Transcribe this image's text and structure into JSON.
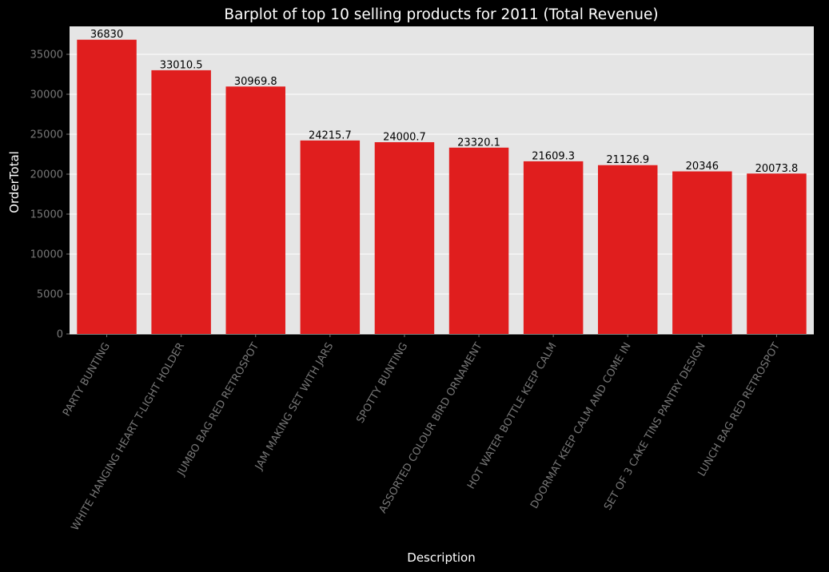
{
  "chart_data": {
    "type": "bar",
    "title": "Barplot of top 10 selling products for 2011 (Total Revenue)",
    "xlabel": "Description",
    "ylabel": "OrderTotal",
    "ylim": [
      0,
      38500
    ],
    "yticks": [
      0,
      5000,
      10000,
      15000,
      20000,
      25000,
      30000,
      35000
    ],
    "ytick_labels": [
      "0",
      "5000",
      "10000",
      "15000",
      "20000",
      "25000",
      "30000",
      "35000"
    ],
    "grid": true,
    "categories": [
      "PARTY BUNTING",
      "WHITE HANGING HEART T-LIGHT HOLDER",
      "JUMBO BAG RED RETROSPOT",
      "JAM MAKING SET WITH JARS",
      "SPOTTY BUNTING",
      "ASSORTED COLOUR BIRD ORNAMENT",
      "HOT WATER BOTTLE KEEP CALM",
      "DOORMAT KEEP CALM AND COME IN",
      "SET OF 3 CAKE TINS PANTRY DESIGN",
      "LUNCH BAG RED RETROSPOT"
    ],
    "values": [
      36830,
      33010.5,
      30969.8,
      24215.7,
      24000.7,
      23320.1,
      21609.3,
      21126.9,
      20346,
      20073.8
    ],
    "value_labels": [
      "36830",
      "33010.5",
      "30969.8",
      "24215.7",
      "24000.7",
      "23320.1",
      "21609.3",
      "21126.9",
      "20346",
      "20073.8"
    ],
    "colors": {
      "figure_background": "#000000",
      "plot_background": "#e5e5e5",
      "bar": "#e01e1e",
      "gridline": "#ffffff",
      "title": "#ffffff",
      "axis_label": "#ffffff",
      "tick_label": "#777777",
      "data_label": "#000000"
    }
  }
}
